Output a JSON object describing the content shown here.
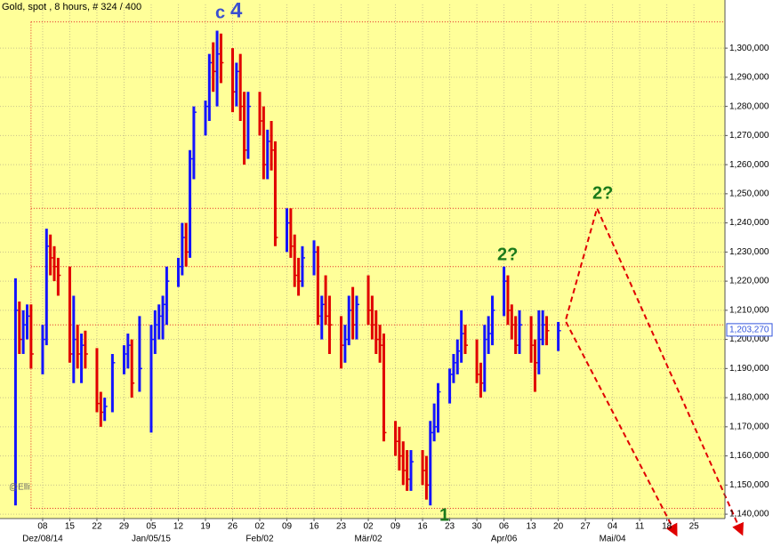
{
  "chart_data": {
    "type": "ohlc",
    "title": "Gold, spot , 8 hours, # 324 / 400",
    "watermark": "@Elli",
    "annotations": [
      {
        "text": "c",
        "color": "#3a4fd0"
      },
      {
        "text": "4",
        "color": "#3a4fd0"
      },
      {
        "text": "1",
        "color": "#1a7a1a"
      },
      {
        "text": "2?",
        "color": "#1a7a1a"
      },
      {
        "text": "2?",
        "color": "#1a7a1a"
      }
    ],
    "up_color": "#1414ff",
    "down_color": "#e00000",
    "background": "#ffff99",
    "grid": true,
    "xlim": [
      "2014-11-27",
      "2015-06-02"
    ],
    "ylim": [
      1138500,
      1315000
    ],
    "x": [
      "2014-12-01",
      "2014-12-02",
      "2014-12-03",
      "2014-12-04",
      "2014-12-05",
      "2014-12-08",
      "2014-12-09",
      "2014-12-10",
      "2014-12-11",
      "2014-12-12",
      "2014-12-15",
      "2014-12-16",
      "2014-12-17",
      "2014-12-18",
      "2014-12-19",
      "2014-12-22",
      "2014-12-23",
      "2014-12-24",
      "2014-12-26",
      "2014-12-29",
      "2014-12-30",
      "2014-12-31",
      "2015-01-02",
      "2015-01-05",
      "2015-01-06",
      "2015-01-07",
      "2015-01-08",
      "2015-01-09",
      "2015-01-12",
      "2015-01-13",
      "2015-01-14",
      "2015-01-15",
      "2015-01-16",
      "2015-01-19",
      "2015-01-20",
      "2015-01-21",
      "2015-01-22",
      "2015-01-23",
      "2015-01-26",
      "2015-01-27",
      "2015-01-28",
      "2015-01-29",
      "2015-01-30",
      "2015-02-02",
      "2015-02-03",
      "2015-02-04",
      "2015-02-05",
      "2015-02-06",
      "2015-02-09",
      "2015-02-10",
      "2015-02-11",
      "2015-02-12",
      "2015-02-13",
      "2015-02-16",
      "2015-02-17",
      "2015-02-18",
      "2015-02-19",
      "2015-02-20",
      "2015-02-23",
      "2015-02-24",
      "2015-02-25",
      "2015-02-26",
      "2015-02-27",
      "2015-03-02",
      "2015-03-03",
      "2015-03-04",
      "2015-03-05",
      "2015-03-06",
      "2015-03-09",
      "2015-03-10",
      "2015-03-11",
      "2015-03-12",
      "2015-03-13",
      "2015-03-16",
      "2015-03-17",
      "2015-03-18",
      "2015-03-19",
      "2015-03-20",
      "2015-03-23",
      "2015-03-24",
      "2015-03-25",
      "2015-03-26",
      "2015-03-27",
      "2015-03-30",
      "2015-03-31",
      "2015-04-01",
      "2015-04-02",
      "2015-04-03",
      "2015-04-06",
      "2015-04-07",
      "2015-04-08",
      "2015-04-09",
      "2015-04-10",
      "2015-04-13",
      "2015-04-14",
      "2015-04-15",
      "2015-04-16",
      "2015-04-17",
      "2015-04-20"
    ],
    "high": [
      1221000,
      1213000,
      1210000,
      1212000,
      1212000,
      1205000,
      1238000,
      1236000,
      1232000,
      1228000,
      1225000,
      1215000,
      1205000,
      1202000,
      1203000,
      1197000,
      1182000,
      1180000,
      1195000,
      1198000,
      1202000,
      1200000,
      1208000,
      1205000,
      1210000,
      1212000,
      1215000,
      1225000,
      1228000,
      1240000,
      1240000,
      1265000,
      1280000,
      1282000,
      1298000,
      1302000,
      1306000,
      1305000,
      1300000,
      1295000,
      1298000,
      1285000,
      1285000,
      1285000,
      1280000,
      1272000,
      1275000,
      1268000,
      1245000,
      1245000,
      1236000,
      1228000,
      1232000,
      1234000,
      1232000,
      1215000,
      1222000,
      1215000,
      1208000,
      1205000,
      1215000,
      1218000,
      1215000,
      1222000,
      1215000,
      1210000,
      1205000,
      1202000,
      1172000,
      1170000,
      1165000,
      1162000,
      1162000,
      1162000,
      1160000,
      1172000,
      1178000,
      1185000,
      1190000,
      1195000,
      1200000,
      1210000,
      1205000,
      1200000,
      1192000,
      1205000,
      1208000,
      1215000,
      1225000,
      1222000,
      1212000,
      1208000,
      1210000,
      1208000,
      1200000,
      1210000,
      1210000,
      1208000,
      1206000
    ],
    "low": [
      1143000,
      1195000,
      1195000,
      1200000,
      1190000,
      1188000,
      1198000,
      1222000,
      1220000,
      1215000,
      1192000,
      1185000,
      1190000,
      1185000,
      1190000,
      1175000,
      1170000,
      1172000,
      1175000,
      1188000,
      1190000,
      1180000,
      1182000,
      1168000,
      1195000,
      1200000,
      1200000,
      1205000,
      1218000,
      1222000,
      1225000,
      1228000,
      1255000,
      1270000,
      1275000,
      1285000,
      1280000,
      1288000,
      1278000,
      1280000,
      1275000,
      1260000,
      1262000,
      1270000,
      1255000,
      1255000,
      1258000,
      1232000,
      1230000,
      1228000,
      1218000,
      1215000,
      1218000,
      1222000,
      1205000,
      1200000,
      1205000,
      1195000,
      1190000,
      1192000,
      1198000,
      1200000,
      1200000,
      1205000,
      1200000,
      1195000,
      1192000,
      1165000,
      1160000,
      1155000,
      1150000,
      1148000,
      1148000,
      1150000,
      1145000,
      1143000,
      1165000,
      1168000,
      1178000,
      1185000,
      1188000,
      1192000,
      1195000,
      1185000,
      1180000,
      1182000,
      1195000,
      1198000,
      1208000,
      1205000,
      1200000,
      1195000,
      1195000,
      1192000,
      1182000,
      1188000,
      1198000,
      1198000,
      1196000
    ],
    "close": [
      1210000,
      1200000,
      1205000,
      1208000,
      1195000,
      1200000,
      1232000,
      1228000,
      1225000,
      1222000,
      1195000,
      1200000,
      1195000,
      1198000,
      1195000,
      1178000,
      1175000,
      1177000,
      1192000,
      1195000,
      1198000,
      1185000,
      1190000,
      1200000,
      1205000,
      1208000,
      1212000,
      1220000,
      1225000,
      1235000,
      1230000,
      1262000,
      1278000,
      1280000,
      1295000,
      1292000,
      1298000,
      1295000,
      1285000,
      1292000,
      1280000,
      1265000,
      1280000,
      1275000,
      1260000,
      1268000,
      1265000,
      1235000,
      1240000,
      1232000,
      1222000,
      1220000,
      1228000,
      1230000,
      1208000,
      1212000,
      1208000,
      1205000,
      1198000,
      1200000,
      1210000,
      1205000,
      1212000,
      1210000,
      1205000,
      1200000,
      1198000,
      1168000,
      1165000,
      1160000,
      1155000,
      1152000,
      1158000,
      1155000,
      1150000,
      1168000,
      1170000,
      1182000,
      1188000,
      1192000,
      1196000,
      1202000,
      1198000,
      1188000,
      1185000,
      1200000,
      1202000,
      1210000,
      1220000,
      1210000,
      1205000,
      1198000,
      1205000,
      1198000,
      1192000,
      1200000,
      1205000,
      1203000,
      1203000
    ],
    "levels": [
      1309000,
      1245000,
      1225000,
      1205000,
      1142000
    ],
    "levels_start": "2014-12-05",
    "levels_color": "#e02020",
    "projections": [
      {
        "x": [
          "2015-04-22",
          "2015-04-30",
          "2015-06-06"
        ],
        "values": [
          1207000,
          1245000,
          1134500
        ]
      },
      {
        "x": [
          "2015-04-22",
          "2015-05-20"
        ],
        "values": [
          1206000,
          1134200
        ]
      }
    ],
    "last_price": {
      "value": 1203270,
      "label": "1,203,270"
    },
    "yticks": [
      {
        "value": 1140000,
        "label": "1,140,000"
      },
      {
        "value": 1150000,
        "label": "1,150,000"
      },
      {
        "value": 1160000,
        "label": "1,160,000"
      },
      {
        "value": 1170000,
        "label": "1,170,000"
      },
      {
        "value": 1180000,
        "label": "1,180,000"
      },
      {
        "value": 1190000,
        "label": "1,190,000"
      },
      {
        "value": 1200000,
        "label": "1,200,000"
      },
      {
        "value": 1210000,
        "label": "1,210,000"
      },
      {
        "value": 1220000,
        "label": "1,220,000"
      },
      {
        "value": 1230000,
        "label": "1,230,000"
      },
      {
        "value": 1240000,
        "label": "1,240,000"
      },
      {
        "value": 1250000,
        "label": "1,250,000"
      },
      {
        "value": 1260000,
        "label": "1,260,000"
      },
      {
        "value": 1270000,
        "label": "1,270,000"
      },
      {
        "value": 1280000,
        "label": "1,280,000"
      },
      {
        "value": 1290000,
        "label": "1,290,000"
      },
      {
        "value": 1300000,
        "label": "1,300,000"
      }
    ],
    "xticks": [
      {
        "value": "2014-12-08",
        "label": "08"
      },
      {
        "value": "2014-12-15",
        "label": "15"
      },
      {
        "value": "2014-12-22",
        "label": "22"
      },
      {
        "value": "2014-12-29",
        "label": "29"
      },
      {
        "value": "2015-01-05",
        "label": "05"
      },
      {
        "value": "2015-01-12",
        "label": "12"
      },
      {
        "value": "2015-01-19",
        "label": "19"
      },
      {
        "value": "2015-01-26",
        "label": "26"
      },
      {
        "value": "2015-02-02",
        "label": "02"
      },
      {
        "value": "2015-02-09",
        "label": "09"
      },
      {
        "value": "2015-02-16",
        "label": "16"
      },
      {
        "value": "2015-02-23",
        "label": "23"
      },
      {
        "value": "2015-03-02",
        "label": "02"
      },
      {
        "value": "2015-03-09",
        "label": "09"
      },
      {
        "value": "2015-03-16",
        "label": "16"
      },
      {
        "value": "2015-03-23",
        "label": "23"
      },
      {
        "value": "2015-03-30",
        "label": "30"
      },
      {
        "value": "2015-04-06",
        "label": "06"
      },
      {
        "value": "2015-04-13",
        "label": "13"
      },
      {
        "value": "2015-04-20",
        "label": "20"
      },
      {
        "value": "2015-04-27",
        "label": "27"
      },
      {
        "value": "2015-05-04",
        "label": "04"
      },
      {
        "value": "2015-05-11",
        "label": "11"
      },
      {
        "value": "2015-05-18",
        "label": "18"
      },
      {
        "value": "2015-05-25",
        "label": "25"
      }
    ],
    "xticks_major": [
      {
        "value": "2014-12-08",
        "label": "Dez/08/14"
      },
      {
        "value": "2015-01-05",
        "label": "Jan/05/15"
      },
      {
        "value": "2015-02-02",
        "label": "Feb/02"
      },
      {
        "value": "2015-03-02",
        "label": "Mär/02"
      },
      {
        "value": "2015-04-06",
        "label": "Apr/06"
      },
      {
        "value": "2015-05-04",
        "label": "Mai/04"
      }
    ]
  }
}
